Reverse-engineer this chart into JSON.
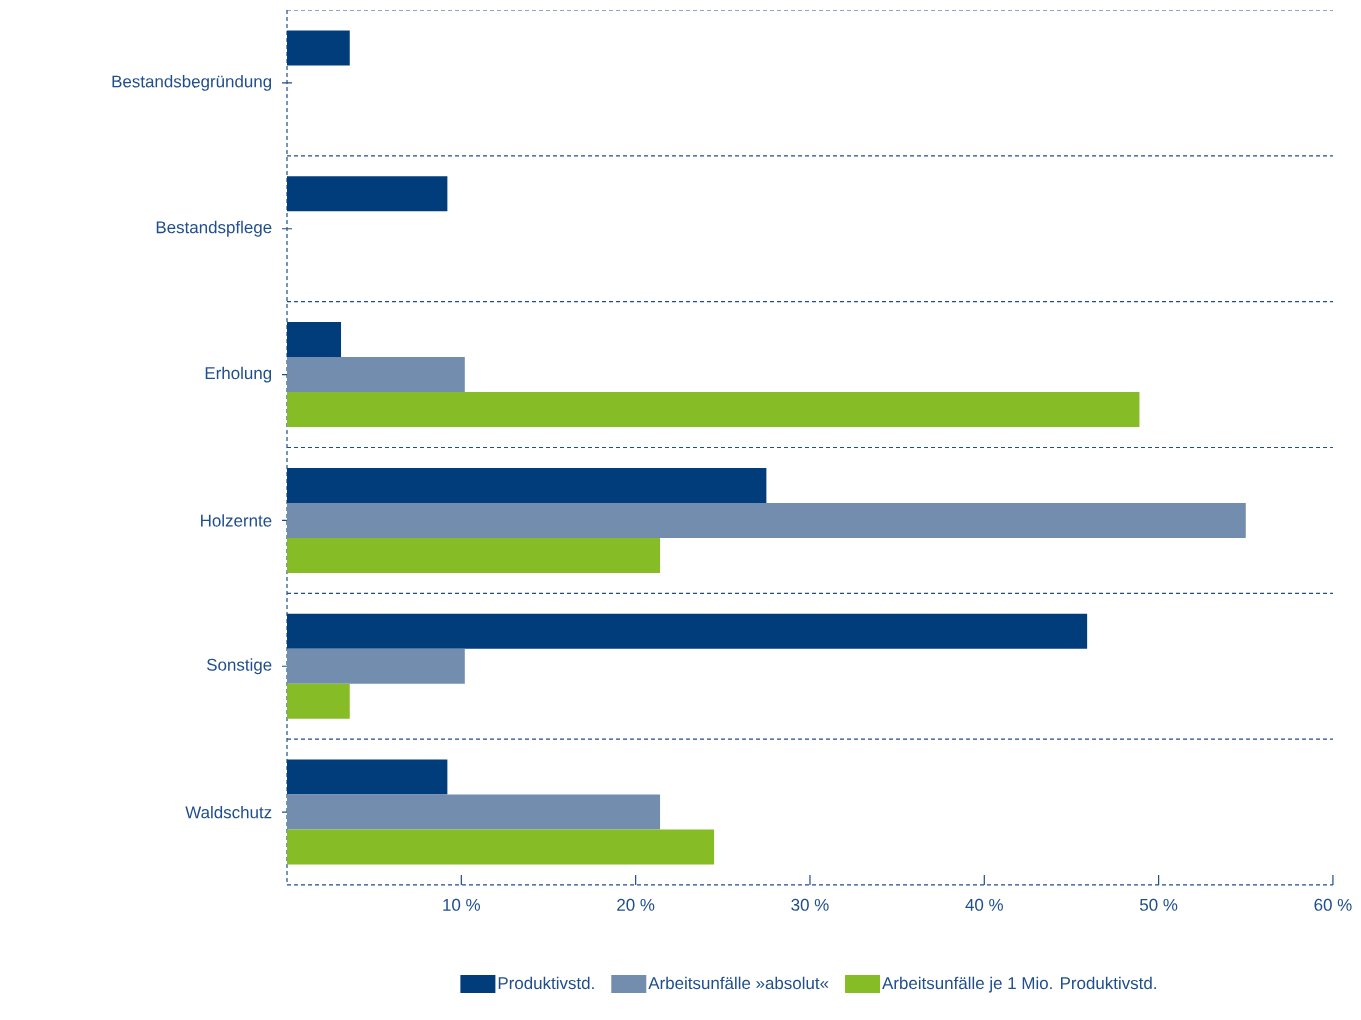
{
  "chart_data": {
    "type": "bar",
    "orientation": "horizontal",
    "categories": [
      "Bestandsbegründung",
      "Bestandspflege",
      "Erholung",
      "Holzernte",
      "Sonstige",
      "Waldschutz"
    ],
    "series": [
      {
        "name": "Produktivstd.",
        "color": "#003d7a",
        "values": [
          3.6,
          9.2,
          3.1,
          27.5,
          45.9,
          9.2
        ]
      },
      {
        "name": "Arbeitsunfälle »absolut«",
        "color": "#738dae",
        "values": [
          0,
          0,
          10.2,
          55.0,
          10.2,
          21.4
        ]
      },
      {
        "name": "Arbeitsunfälle je 1 Mio. Produktivstd.",
        "color": "#86bc25",
        "values": [
          0,
          0,
          48.9,
          21.4,
          3.6,
          24.5
        ]
      }
    ],
    "xlim": [
      0,
      60
    ],
    "xticks": [
      {
        "value": 10,
        "label": "10 %"
      },
      {
        "value": 20,
        "label": "20 %"
      },
      {
        "value": 30,
        "label": "30 %"
      },
      {
        "value": 40,
        "label": "40 %"
      },
      {
        "value": 50,
        "label": "50 %"
      },
      {
        "value": 60,
        "label": "60 %"
      }
    ],
    "grid": "y",
    "legend": "bottom"
  }
}
